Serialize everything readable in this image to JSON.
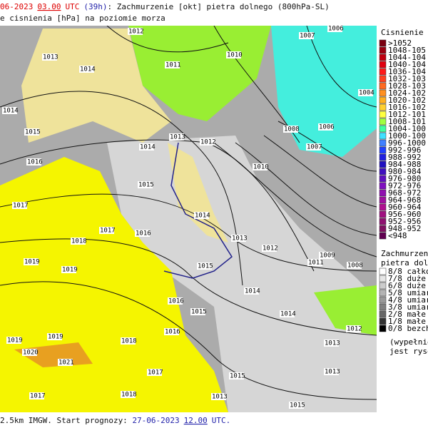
{
  "header": {
    "date": "06-2023",
    "time": "03.00",
    "utc": "UTC",
    "lead": "(39h)",
    "title": ": Zachmurzenie [okt] pietra dolnego (800hPa-SL)",
    "subtitle": "e cisnienia [hPa] na poziomie morza"
  },
  "pressure_legend": {
    "title": "Cisnienie [hP",
    "entries": [
      {
        "label": ">1052",
        "color": "#7a0010"
      },
      {
        "label": "1048-105",
        "color": "#9a0010"
      },
      {
        "label": "1044-104",
        "color": "#c00010"
      },
      {
        "label": "1040-104",
        "color": "#e00010"
      },
      {
        "label": "1036-104",
        "color": "#ff1a1a"
      },
      {
        "label": "1032-103",
        "color": "#ff4020"
      },
      {
        "label": "1028-103",
        "color": "#ff6a20"
      },
      {
        "label": "1024-102",
        "color": "#ff9020"
      },
      {
        "label": "1020-102",
        "color": "#ffb020"
      },
      {
        "label": "1016-102",
        "color": "#ffd030"
      },
      {
        "label": "1012-101",
        "color": "#ffff40"
      },
      {
        "label": "1008-101",
        "color": "#a0ff40"
      },
      {
        "label": "1004-100",
        "color": "#40ffa0"
      },
      {
        "label": "1000-100",
        "color": "#40e0ff"
      },
      {
        "label": "996-1000",
        "color": "#4080ff"
      },
      {
        "label": "992-996",
        "color": "#2040ff"
      },
      {
        "label": "988-992",
        "color": "#2020e0"
      },
      {
        "label": "984-988",
        "color": "#2010c0"
      },
      {
        "label": "980-984",
        "color": "#4010c0"
      },
      {
        "label": "976-980",
        "color": "#6010c0"
      },
      {
        "label": "972-976",
        "color": "#8010c0"
      },
      {
        "label": "968-972",
        "color": "#9010b0"
      },
      {
        "label": "964-968",
        "color": "#a010a0"
      },
      {
        "label": "960-964",
        "color": "#b01090"
      },
      {
        "label": "956-960",
        "color": "#a01080"
      },
      {
        "label": "952-956",
        "color": "#901070"
      },
      {
        "label": "948-952",
        "color": "#801060"
      },
      {
        "label": "<948",
        "color": "#600050"
      }
    ]
  },
  "cloud_legend": {
    "title": "Zachmurzenie",
    "subtitle": "pietra dolnego",
    "entries": [
      {
        "label": "8/8 całkow",
        "color": "#ffffff"
      },
      {
        "label": "7/8 duże",
        "color": "#e6e6e6"
      },
      {
        "label": "6/8 duże",
        "color": "#cccccc"
      },
      {
        "label": "5/8 umiar",
        "color": "#b3b3b3"
      },
      {
        "label": "4/8 umiar",
        "color": "#999999"
      },
      {
        "label": "3/8 umiar",
        "color": "#808080"
      },
      {
        "label": "2/8 małe",
        "color": "#666666"
      },
      {
        "label": "1/8 małe",
        "color": "#333333"
      },
      {
        "label": "0/8 bezch",
        "color": "#000000"
      }
    ],
    "note1": "(wypełnieni",
    "note2": "jest rysowa"
  },
  "map": {
    "labels": [
      "1012",
      "1013",
      "1011",
      "1010",
      "1007",
      "1006",
      "1014",
      "1004",
      "1014",
      "1015",
      "1013",
      "1012",
      "1008",
      "1006",
      "1007",
      "1014",
      "1016",
      "1010",
      "1015",
      "1017",
      "1014",
      "1017",
      "1016",
      "1013",
      "1018",
      "1012",
      "1009",
      "1011",
      "1008",
      "1019",
      "1019",
      "1015",
      "1014",
      "1016",
      "1015",
      "1014",
      "1012",
      "1019",
      "1019",
      "1018",
      "1016",
      "1020",
      "1021",
      "1013",
      "1017",
      "1015",
      "1013",
      "1018",
      "1017",
      "1013",
      "1015"
    ]
  },
  "footer": {
    "model": "2.5km IMGW. Start prognozy: ",
    "date": "27-06-2023",
    "time": "12.00",
    "utc": "UTC."
  }
}
